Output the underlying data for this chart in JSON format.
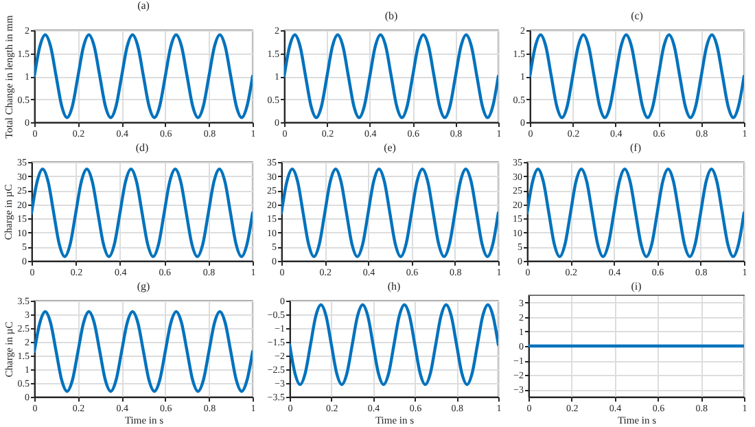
{
  "chart_data": [
    {
      "type": "line",
      "title": "(a)",
      "ylabel": "Total Change in length in mm",
      "x": [
        0,
        0.025,
        0.05,
        0.075,
        0.1,
        0.125,
        0.15,
        0.175,
        0.2,
        0.225,
        0.25,
        0.275,
        0.3,
        0.325,
        0.35,
        0.375,
        0.4,
        0.425,
        0.45,
        0.475,
        0.5,
        0.525,
        0.55,
        0.575,
        0.6,
        0.625,
        0.65,
        0.675,
        0.7,
        0.725,
        0.75,
        0.775,
        0.8,
        0.825,
        0.85,
        0.875,
        0.9,
        0.925,
        0.95,
        0.975,
        1
      ],
      "series": [
        {
          "color": "#0072bd",
          "values": [
            1,
            1.64,
            1.9,
            1.64,
            1,
            0.36,
            0.1,
            0.36,
            1,
            1.64,
            1.9,
            1.64,
            1,
            0.36,
            0.1,
            0.36,
            1,
            1.64,
            1.9,
            1.64,
            1,
            0.36,
            0.1,
            0.36,
            1,
            1.64,
            1.9,
            1.64,
            1,
            0.36,
            0.1,
            0.36,
            1,
            1.64,
            1.9,
            1.64,
            1,
            0.36,
            0.1,
            0.36,
            1
          ]
        }
      ],
      "xlim": [
        0,
        1
      ],
      "xticks": [
        0,
        0.2,
        0.4,
        0.6,
        0.8,
        1
      ],
      "ylim": [
        0,
        2
      ],
      "yticks": [
        0,
        0.5,
        1,
        1.5,
        2
      ],
      "grid": true
    },
    {
      "type": "line",
      "title": "(b)",
      "x": [
        0,
        0.025,
        0.05,
        0.075,
        0.1,
        0.125,
        0.15,
        0.175,
        0.2,
        0.225,
        0.25,
        0.275,
        0.3,
        0.325,
        0.35,
        0.375,
        0.4,
        0.425,
        0.45,
        0.475,
        0.5,
        0.525,
        0.55,
        0.575,
        0.6,
        0.625,
        0.65,
        0.675,
        0.7,
        0.725,
        0.75,
        0.775,
        0.8,
        0.825,
        0.85,
        0.875,
        0.9,
        0.925,
        0.95,
        0.975,
        1
      ],
      "series": [
        {
          "color": "#0072bd",
          "values": [
            1,
            1.64,
            1.9,
            1.64,
            1,
            0.36,
            0.1,
            0.36,
            1,
            1.64,
            1.9,
            1.64,
            1,
            0.36,
            0.1,
            0.36,
            1,
            1.64,
            1.9,
            1.64,
            1,
            0.36,
            0.1,
            0.36,
            1,
            1.64,
            1.9,
            1.64,
            1,
            0.36,
            0.1,
            0.36,
            1,
            1.64,
            1.9,
            1.64,
            1,
            0.36,
            0.1,
            0.36,
            1
          ]
        }
      ],
      "xlim": [
        0,
        1
      ],
      "xticks": [
        0,
        0.2,
        0.4,
        0.6,
        0.8,
        1
      ],
      "ylim": [
        0,
        2
      ],
      "yticks": [
        0,
        0.5,
        1,
        1.5,
        2
      ],
      "grid": true
    },
    {
      "type": "line",
      "title": "(c)",
      "x": [
        0,
        0.025,
        0.05,
        0.075,
        0.1,
        0.125,
        0.15,
        0.175,
        0.2,
        0.225,
        0.25,
        0.275,
        0.3,
        0.325,
        0.35,
        0.375,
        0.4,
        0.425,
        0.45,
        0.475,
        0.5,
        0.525,
        0.55,
        0.575,
        0.6,
        0.625,
        0.65,
        0.675,
        0.7,
        0.725,
        0.75,
        0.775,
        0.8,
        0.825,
        0.85,
        0.875,
        0.9,
        0.925,
        0.95,
        0.975,
        1
      ],
      "series": [
        {
          "color": "#0072bd",
          "values": [
            1,
            1.64,
            1.9,
            1.64,
            1,
            0.36,
            0.1,
            0.36,
            1,
            1.64,
            1.9,
            1.64,
            1,
            0.36,
            0.1,
            0.36,
            1,
            1.64,
            1.9,
            1.64,
            1,
            0.36,
            0.1,
            0.36,
            1,
            1.64,
            1.9,
            1.64,
            1,
            0.36,
            0.1,
            0.36,
            1,
            1.64,
            1.9,
            1.64,
            1,
            0.36,
            0.1,
            0.36,
            1
          ]
        }
      ],
      "xlim": [
        0,
        1
      ],
      "xticks": [
        0,
        0.2,
        0.4,
        0.6,
        0.8,
        1
      ],
      "ylim": [
        0,
        2
      ],
      "yticks": [
        0,
        0.5,
        1,
        1.5,
        2
      ],
      "grid": true
    },
    {
      "type": "line",
      "title": "(d)",
      "ylabel": "Charge in µC",
      "x": [
        0,
        0.025,
        0.05,
        0.075,
        0.1,
        0.125,
        0.15,
        0.175,
        0.2,
        0.225,
        0.25,
        0.275,
        0.3,
        0.325,
        0.35,
        0.375,
        0.4,
        0.425,
        0.45,
        0.475,
        0.5,
        0.525,
        0.55,
        0.575,
        0.6,
        0.625,
        0.65,
        0.675,
        0.7,
        0.725,
        0.75,
        0.775,
        0.8,
        0.825,
        0.85,
        0.875,
        0.9,
        0.925,
        0.95,
        0.975,
        1
      ],
      "series": [
        {
          "color": "#0072bd",
          "values": [
            17,
            28,
            32.5,
            28,
            17,
            6,
            1.5,
            6,
            17,
            28,
            32.5,
            28,
            17,
            6,
            1.5,
            6,
            17,
            28,
            32.5,
            28,
            17,
            6,
            1.5,
            6,
            17,
            28,
            32.5,
            28,
            17,
            6,
            1.5,
            6,
            17,
            28,
            32.5,
            28,
            17,
            6,
            1.5,
            6,
            17
          ]
        }
      ],
      "xlim": [
        0,
        1
      ],
      "xticks": [
        0,
        0.2,
        0.4,
        0.6,
        0.8,
        1
      ],
      "ylim": [
        0,
        35
      ],
      "yticks": [
        0,
        5,
        10,
        15,
        20,
        25,
        30,
        35
      ],
      "grid": true
    },
    {
      "type": "line",
      "title": "(e)",
      "x": [
        0,
        0.025,
        0.05,
        0.075,
        0.1,
        0.125,
        0.15,
        0.175,
        0.2,
        0.225,
        0.25,
        0.275,
        0.3,
        0.325,
        0.35,
        0.375,
        0.4,
        0.425,
        0.45,
        0.475,
        0.5,
        0.525,
        0.55,
        0.575,
        0.6,
        0.625,
        0.65,
        0.675,
        0.7,
        0.725,
        0.75,
        0.775,
        0.8,
        0.825,
        0.85,
        0.875,
        0.9,
        0.925,
        0.95,
        0.975,
        1
      ],
      "series": [
        {
          "color": "#0072bd",
          "values": [
            17,
            28,
            32.5,
            28,
            17,
            6,
            1.5,
            6,
            17,
            28,
            32.5,
            28,
            17,
            6,
            1.5,
            6,
            17,
            28,
            32.5,
            28,
            17,
            6,
            1.5,
            6,
            17,
            28,
            32.5,
            28,
            17,
            6,
            1.5,
            6,
            17,
            28,
            32.5,
            28,
            17,
            6,
            1.5,
            6,
            17
          ]
        }
      ],
      "xlim": [
        0,
        1
      ],
      "xticks": [
        0,
        0.2,
        0.4,
        0.6,
        0.8,
        1
      ],
      "ylim": [
        0,
        35
      ],
      "yticks": [
        0,
        5,
        10,
        15,
        20,
        25,
        30,
        35
      ],
      "grid": true
    },
    {
      "type": "line",
      "title": "(f)",
      "x": [
        0,
        0.025,
        0.05,
        0.075,
        0.1,
        0.125,
        0.15,
        0.175,
        0.2,
        0.225,
        0.25,
        0.275,
        0.3,
        0.325,
        0.35,
        0.375,
        0.4,
        0.425,
        0.45,
        0.475,
        0.5,
        0.525,
        0.55,
        0.575,
        0.6,
        0.625,
        0.65,
        0.675,
        0.7,
        0.725,
        0.75,
        0.775,
        0.8,
        0.825,
        0.85,
        0.875,
        0.9,
        0.925,
        0.95,
        0.975,
        1
      ],
      "series": [
        {
          "color": "#0072bd",
          "values": [
            17,
            28,
            32.5,
            28,
            17,
            6,
            1.5,
            6,
            17,
            28,
            32.5,
            28,
            17,
            6,
            1.5,
            6,
            17,
            28,
            32.5,
            28,
            17,
            6,
            1.5,
            6,
            17,
            28,
            32.5,
            28,
            17,
            6,
            1.5,
            6,
            17,
            28,
            32.5,
            28,
            17,
            6,
            1.5,
            6,
            17
          ]
        }
      ],
      "xlim": [
        0,
        1
      ],
      "xticks": [
        0,
        0.2,
        0.4,
        0.6,
        0.8,
        1
      ],
      "ylim": [
        0,
        35
      ],
      "yticks": [
        0,
        5,
        10,
        15,
        20,
        25,
        30,
        35
      ],
      "grid": true
    },
    {
      "type": "line",
      "title": "(g)",
      "xlabel": "Time in s",
      "ylabel": "Charge in µC",
      "x": [
        0,
        0.025,
        0.05,
        0.075,
        0.1,
        0.125,
        0.15,
        0.175,
        0.2,
        0.225,
        0.25,
        0.275,
        0.3,
        0.325,
        0.35,
        0.375,
        0.4,
        0.425,
        0.45,
        0.475,
        0.5,
        0.525,
        0.55,
        0.575,
        0.6,
        0.625,
        0.65,
        0.675,
        0.7,
        0.725,
        0.75,
        0.775,
        0.8,
        0.825,
        0.85,
        0.875,
        0.9,
        0.925,
        0.95,
        0.975,
        1
      ],
      "series": [
        {
          "color": "#0072bd",
          "values": [
            1.65,
            2.68,
            3.1,
            2.68,
            1.65,
            0.62,
            0.2,
            0.62,
            1.65,
            2.68,
            3.1,
            2.68,
            1.65,
            0.62,
            0.2,
            0.62,
            1.65,
            2.68,
            3.1,
            2.68,
            1.65,
            0.62,
            0.2,
            0.62,
            1.65,
            2.68,
            3.1,
            2.68,
            1.65,
            0.62,
            0.2,
            0.62,
            1.65,
            2.68,
            3.1,
            2.68,
            1.65,
            0.62,
            0.2,
            0.62,
            1.65
          ]
        }
      ],
      "xlim": [
        0,
        1
      ],
      "xticks": [
        0,
        0.2,
        0.4,
        0.6,
        0.8,
        1
      ],
      "ylim": [
        0,
        3.5
      ],
      "yticks": [
        0,
        0.5,
        1,
        1.5,
        2,
        2.5,
        3,
        3.5
      ],
      "grid": true
    },
    {
      "type": "line",
      "title": "(h)",
      "xlabel": "Time in s",
      "x": [
        0,
        0.025,
        0.05,
        0.075,
        0.1,
        0.125,
        0.15,
        0.175,
        0.2,
        0.225,
        0.25,
        0.275,
        0.3,
        0.325,
        0.35,
        0.375,
        0.4,
        0.425,
        0.45,
        0.475,
        0.5,
        0.525,
        0.55,
        0.575,
        0.6,
        0.625,
        0.65,
        0.675,
        0.7,
        0.725,
        0.75,
        0.775,
        0.8,
        0.825,
        0.85,
        0.875,
        0.9,
        0.925,
        0.95,
        0.975,
        1
      ],
      "series": [
        {
          "color": "#0072bd",
          "values": [
            -1.6,
            -2.63,
            -3.05,
            -2.63,
            -1.6,
            -0.57,
            -0.15,
            -0.57,
            -1.6,
            -2.63,
            -3.05,
            -2.63,
            -1.6,
            -0.57,
            -0.15,
            -0.57,
            -1.6,
            -2.63,
            -3.05,
            -2.63,
            -1.6,
            -0.57,
            -0.15,
            -0.57,
            -1.6,
            -2.63,
            -3.05,
            -2.63,
            -1.6,
            -0.57,
            -0.15,
            -0.57,
            -1.6,
            -2.63,
            -3.05,
            -2.63,
            -1.6,
            -0.57,
            -0.15,
            -0.57,
            -1.6
          ]
        }
      ],
      "xlim": [
        0,
        1
      ],
      "xticks": [
        0,
        0.2,
        0.4,
        0.6,
        0.8,
        1
      ],
      "ylim": [
        -3.5,
        0
      ],
      "yticks": [
        -3.5,
        -3,
        -2.5,
        -2,
        -1.5,
        -1,
        -0.5,
        0
      ],
      "grid": true
    },
    {
      "type": "line",
      "title": "(i)",
      "xlabel": "Time in s",
      "x": [
        0,
        1
      ],
      "series": [
        {
          "color": "#0072bd",
          "values": [
            0,
            0
          ]
        }
      ],
      "xlim": [
        0,
        1
      ],
      "xticks": [
        0,
        0.2,
        0.4,
        0.6,
        0.8,
        1
      ],
      "ylim": [
        -3.5,
        3.5
      ],
      "yticks": [
        -3,
        -2,
        -1,
        0,
        1,
        2,
        3
      ],
      "grid": true
    }
  ]
}
